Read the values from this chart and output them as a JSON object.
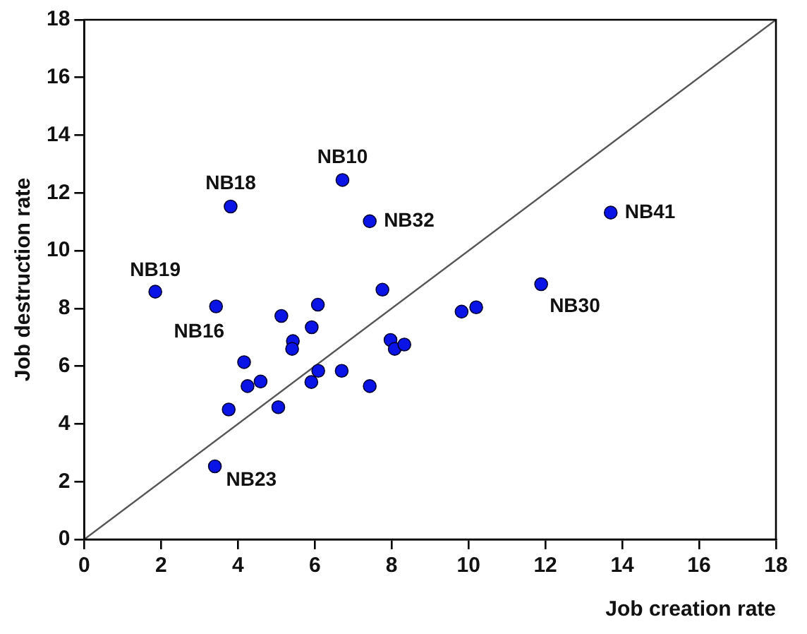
{
  "chart_data": {
    "type": "scatter",
    "xlabel": "Job creation rate",
    "ylabel": "Job destruction rate",
    "series": [
      {
        "color": "#0a14e6",
        "x": [
          6.72,
          3.81,
          7.43,
          13.7,
          1.85,
          3.43,
          11.89,
          3.4,
          7.76,
          5.13,
          6.08,
          5.92,
          5.43,
          5.41,
          4.16,
          4.25,
          4.59,
          3.76,
          5.05,
          6.09,
          5.91,
          6.7,
          7.43,
          7.97,
          8.08,
          8.33,
          9.82,
          10.2
        ],
        "values": [
          12.45,
          11.53,
          11.02,
          11.32,
          8.58,
          8.07,
          8.84,
          2.53,
          8.65,
          7.74,
          8.13,
          7.35,
          6.87,
          6.6,
          6.14,
          5.31,
          5.47,
          4.5,
          4.58,
          5.84,
          5.45,
          5.84,
          5.31,
          6.91,
          6.6,
          6.75,
          7.89,
          8.04
        ]
      },
      {
        "type": "line",
        "marker": "none",
        "color": "#555555",
        "x": [
          0,
          18
        ],
        "values": [
          0,
          18
        ]
      }
    ],
    "annotations": [
      {
        "text": "NB10",
        "x": 6.72,
        "y": 12.45
      },
      {
        "text": "NB18",
        "x": 3.81,
        "y": 11.53
      },
      {
        "text": "NB32",
        "x": 7.43,
        "y": 11.02
      },
      {
        "text": "NB41",
        "x": 13.7,
        "y": 11.32
      },
      {
        "text": "NB19",
        "x": 1.85,
        "y": 8.58
      },
      {
        "text": "NB16",
        "x": 3.43,
        "y": 8.07
      },
      {
        "text": "NB30",
        "x": 11.89,
        "y": 8.84
      },
      {
        "text": "NB23",
        "x": 3.4,
        "y": 2.53
      }
    ],
    "xlim": [
      0,
      18
    ],
    "xticks": [
      0,
      2,
      4,
      6,
      8,
      10,
      12,
      14,
      16,
      18
    ],
    "ylim": [
      0,
      18
    ],
    "yticks": [
      0,
      2,
      4,
      6,
      8,
      10,
      12,
      14,
      16,
      18
    ],
    "grid": false,
    "legend": false,
    "marker": "circle",
    "line_style": "solid"
  }
}
